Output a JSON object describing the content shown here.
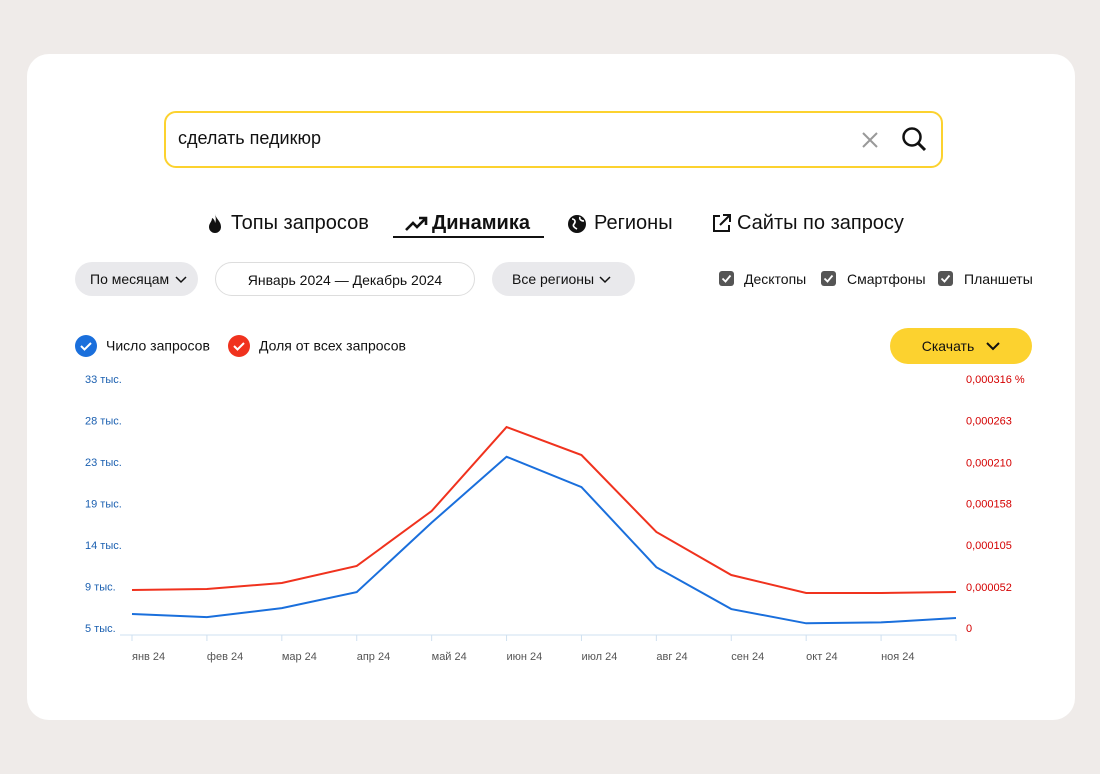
{
  "search": {
    "query": "сделать педикюр"
  },
  "tabs": [
    "Топы запросов",
    "Динамика",
    "Регионы",
    "Сайты по запросу"
  ],
  "filters": {
    "period": "По месяцам",
    "dates": "Январь 2024 — Декабрь 2024",
    "region": "Все регионы"
  },
  "devices": [
    "Десктопы",
    "Смартфоны",
    "Планшеты"
  ],
  "download": "Скачать",
  "chart_data": {
    "type": "line",
    "categories": [
      "янв 24",
      "фев 24",
      "мар 24",
      "апр 24",
      "май 24",
      "июн 24",
      "июл 24",
      "авг 24",
      "сен 24",
      "окт 24",
      "ноя 24",
      null
    ],
    "series": [
      {
        "name": "Число запросов",
        "color": "#1a6fdc",
        "values": [
          6.34,
          6.0,
          7.0,
          8.8,
          16.6,
          24.0,
          20.6,
          11.6,
          6.9,
          5.3,
          5.4,
          5.9
        ]
      },
      {
        "name": "Доля от всех запросов",
        "color": "#f0321e",
        "axis": "y2",
        "values": [
          4.95e-05,
          5.08e-05,
          5.84e-05,
          8e-05,
          0.0001497,
          0.0002563,
          0.0002208,
          0.0001231,
          6.85e-05,
          4.57e-05,
          4.57e-05,
          4.7e-05
        ]
      }
    ],
    "ylim": [
      4.66,
      32.62
    ],
    "yticks": [
      {
        "value": 4.66,
        "label": "5 тыс."
      },
      {
        "value": 9.32,
        "label": "9 тыс."
      },
      {
        "value": 13.98,
        "label": "14 тыс."
      },
      {
        "value": 18.64,
        "label": "19 тыс."
      },
      {
        "value": 23.3,
        "label": "23 тыс."
      },
      {
        "value": 27.96,
        "label": "28 тыс."
      },
      {
        "value": 32.62,
        "label": "33 тыс."
      }
    ],
    "y2lim": [
      0,
      0.000316
    ],
    "y2ticks": [
      0,
      {
        "value": 5.2e-05,
        "label": "0,000052"
      },
      {
        "value": 0.000105,
        "label": "0,000105"
      },
      {
        "value": 0.000158,
        "label": "0,000158"
      },
      {
        "value": 0.00021,
        "label": "0,000210"
      },
      {
        "value": 0.000263,
        "label": "0,000263"
      },
      {
        "value": 0.000316,
        "label": "0,000316 %"
      }
    ]
  }
}
